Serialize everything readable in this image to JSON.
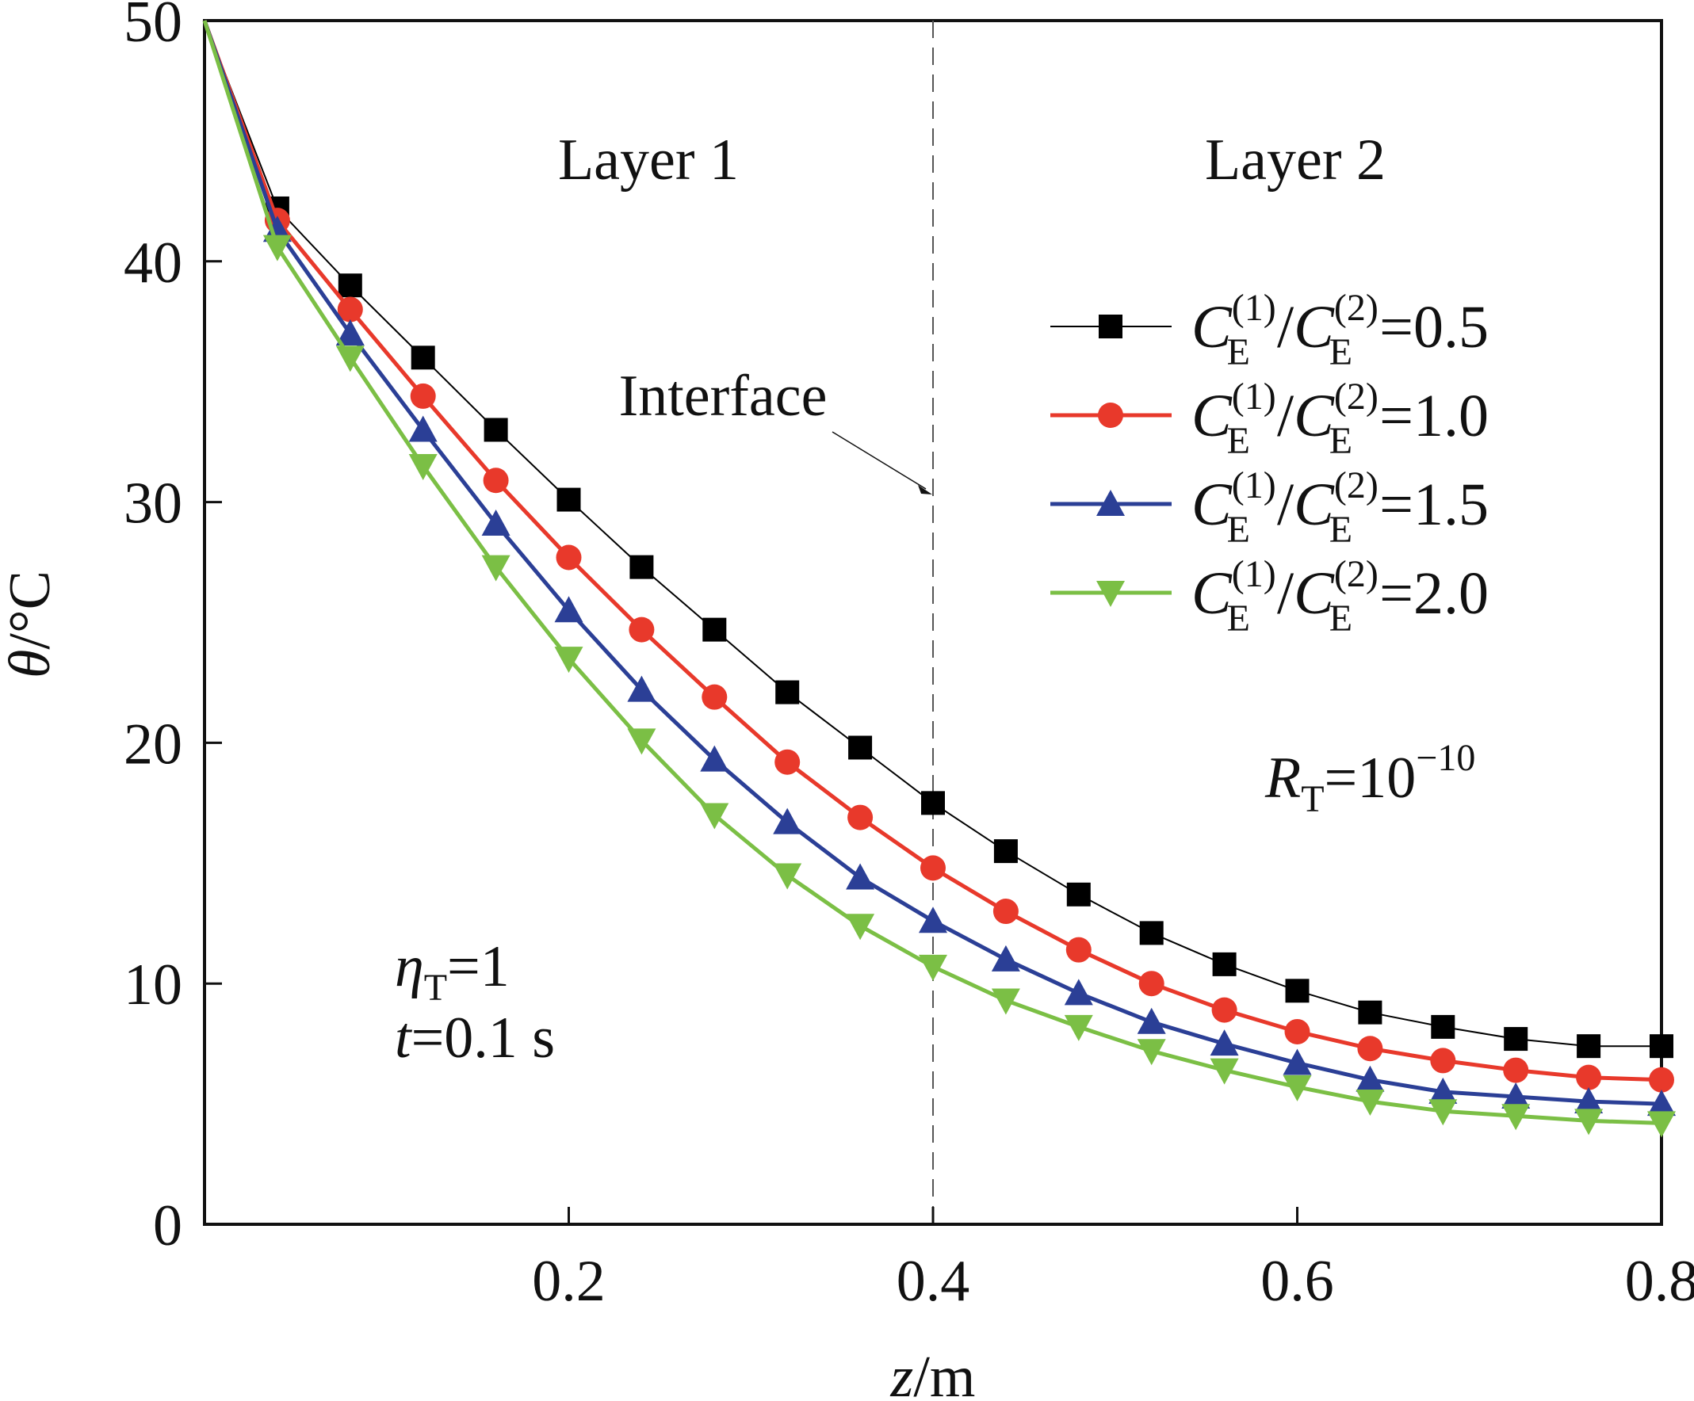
{
  "chart_data": {
    "type": "line",
    "xlabel": {
      "var": "z",
      "unit": "/m"
    },
    "ylabel": {
      "var": "θ",
      "unit": "/°C"
    },
    "xlim": [
      0,
      0.8
    ],
    "ylim": [
      0,
      50
    ],
    "xticks": [
      {
        "value": 0.2,
        "label": "0.2"
      },
      {
        "value": 0.4,
        "label": "0.4"
      },
      {
        "value": 0.6,
        "label": "0.6"
      },
      {
        "value": 0.8,
        "label": "0.8"
      }
    ],
    "yticks": [
      {
        "value": 0,
        "label": "0"
      },
      {
        "value": 10,
        "label": "10"
      },
      {
        "value": 20,
        "label": "20"
      },
      {
        "value": 30,
        "label": "30"
      },
      {
        "value": 40,
        "label": "40"
      },
      {
        "value": 50,
        "label": "50"
      }
    ],
    "grid": false,
    "legend_position": "upper-right",
    "x": [
      0.0,
      0.04,
      0.08,
      0.12,
      0.16,
      0.2,
      0.24,
      0.28,
      0.32,
      0.36,
      0.4,
      0.44,
      0.48,
      0.52,
      0.56,
      0.6,
      0.64,
      0.68,
      0.72,
      0.76,
      0.8
    ],
    "series": [
      {
        "name": "C_E(1)/C_E(2)=0.5",
        "legend": {
          "sym": "C",
          "sub": "E",
          "num_sup": "(1)",
          "den_sup": "(2)",
          "value": "=0.5"
        },
        "color": "#000000",
        "marker": "square",
        "line_width": 2,
        "values": [
          50.0,
          42.2,
          39.0,
          36.0,
          33.0,
          30.1,
          27.3,
          24.7,
          22.1,
          19.8,
          17.5,
          15.5,
          13.7,
          12.1,
          10.8,
          9.7,
          8.8,
          8.2,
          7.7,
          7.4,
          7.4
        ]
      },
      {
        "name": "C_E(1)/C_E(2)=1.0",
        "legend": {
          "sym": "C",
          "sub": "E",
          "num_sup": "(1)",
          "den_sup": "(2)",
          "value": "=1.0"
        },
        "color": "#e8392b",
        "marker": "circle",
        "line_width": 5,
        "values": [
          50.0,
          41.7,
          38.0,
          34.4,
          30.9,
          27.7,
          24.7,
          21.9,
          19.2,
          16.9,
          14.8,
          13.0,
          11.4,
          10.0,
          8.9,
          8.0,
          7.3,
          6.8,
          6.4,
          6.1,
          6.0
        ]
      },
      {
        "name": "C_E(1)/C_E(2)=1.5",
        "legend": {
          "sym": "C",
          "sub": "E",
          "num_sup": "(1)",
          "den_sup": "(2)",
          "value": "=1.5"
        },
        "color": "#2b3f96",
        "marker": "triangle-up",
        "line_width": 5,
        "values": [
          50.0,
          41.3,
          37.0,
          33.0,
          29.1,
          25.5,
          22.2,
          19.3,
          16.7,
          14.4,
          12.6,
          11.0,
          9.6,
          8.4,
          7.5,
          6.7,
          6.0,
          5.5,
          5.3,
          5.1,
          5.0
        ]
      },
      {
        "name": "C_E(1)/C_E(2)=2.0",
        "legend": {
          "sym": "C",
          "sub": "E",
          "num_sup": "(1)",
          "den_sup": "(2)",
          "value": "=2.0"
        },
        "color": "#7bbf45",
        "marker": "triangle-down",
        "line_width": 5,
        "values": [
          50.0,
          40.6,
          36.0,
          31.5,
          27.3,
          23.5,
          20.1,
          17.0,
          14.5,
          12.4,
          10.7,
          9.3,
          8.2,
          7.2,
          6.4,
          5.7,
          5.1,
          4.7,
          4.5,
          4.3,
          4.2
        ]
      }
    ],
    "interface_z": 0.4,
    "annotations": {
      "layer1": "Layer 1",
      "layer2": "Layer 2",
      "interface": "Interface",
      "rt": {
        "sym": "R",
        "sub": "T",
        "rest": "=10",
        "sup": "−10"
      },
      "eta": {
        "sym": "η",
        "sub": "T",
        "rest": "=1"
      },
      "time": {
        "sym": "t",
        "rest": "=0.1 s"
      }
    }
  }
}
